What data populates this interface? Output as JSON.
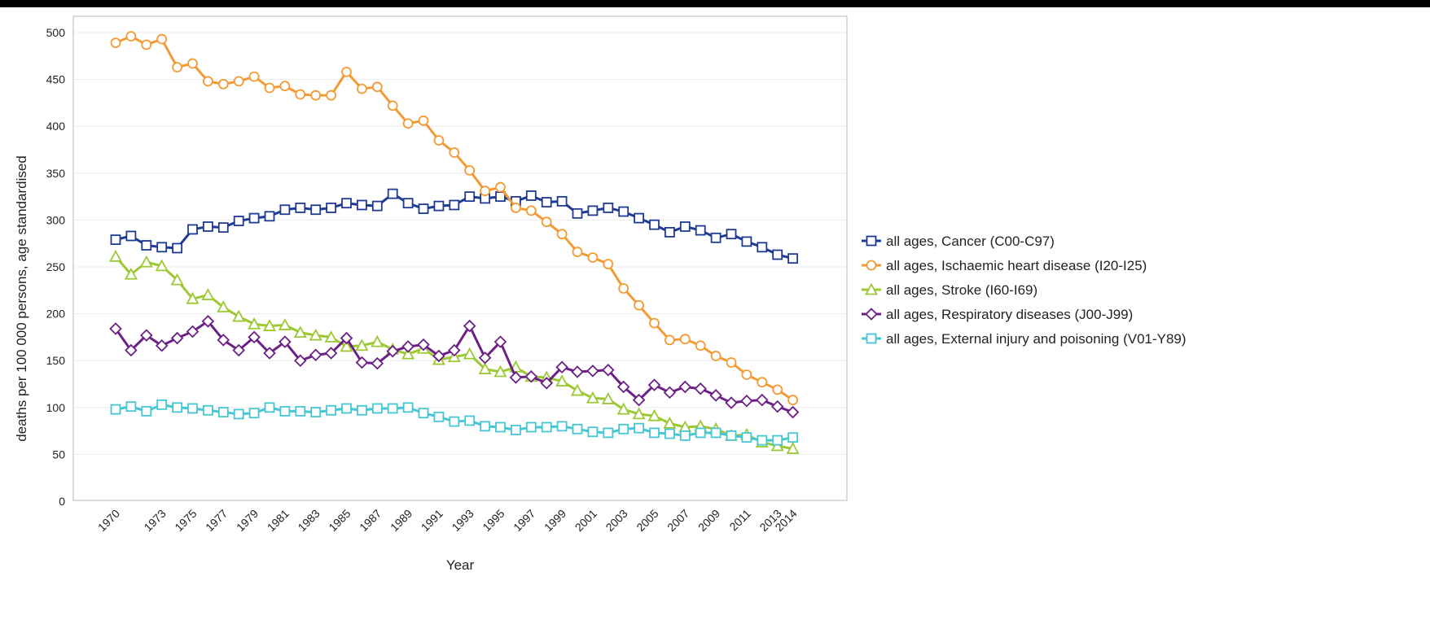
{
  "chart_data": {
    "type": "line",
    "title": "",
    "xlabel": "Year",
    "ylabel": "deaths per 100 000 persons, age standardised",
    "ylim": [
      0,
      520
    ],
    "yticks": [
      0,
      50,
      100,
      150,
      200,
      250,
      300,
      350,
      400,
      450,
      500
    ],
    "x": [
      1970,
      1971,
      1972,
      1973,
      1974,
      1975,
      1976,
      1977,
      1978,
      1979,
      1980,
      1981,
      1982,
      1983,
      1984,
      1985,
      1986,
      1987,
      1988,
      1989,
      1990,
      1991,
      1992,
      1993,
      1994,
      1995,
      1996,
      1997,
      1998,
      1999,
      2000,
      2001,
      2002,
      2003,
      2004,
      2005,
      2006,
      2007,
      2008,
      2009,
      2010,
      2011,
      2012,
      2013,
      2014
    ],
    "xtick_labels": [
      "1970",
      "1973",
      "1975",
      "1977",
      "1979",
      "1981",
      "1983",
      "1985",
      "1987",
      "1989",
      "1991",
      "1993",
      "1995",
      "1997",
      "1999",
      "2001",
      "2003",
      "2005",
      "2007",
      "2009",
      "2011",
      "2013",
      "2014"
    ],
    "grid": "horizontal",
    "legend_position": "right",
    "series": [
      {
        "name": "all ages, Cancer (C00-C97)",
        "color": "#1f3a93",
        "marker": "square",
        "values": [
          279,
          283,
          273,
          271,
          270,
          290,
          293,
          292,
          299,
          302,
          304,
          311,
          313,
          311,
          313,
          318,
          316,
          315,
          328,
          318,
          312,
          315,
          316,
          325,
          323,
          325,
          320,
          326,
          319,
          320,
          307,
          310,
          313,
          309,
          302,
          295,
          287,
          293,
          289,
          281,
          285,
          277,
          271,
          263,
          259
        ]
      },
      {
        "name": "all ages, Ischaemic heart disease (I20-I25)",
        "color": "#f39a34",
        "marker": "circle",
        "values": [
          489,
          496,
          487,
          493,
          463,
          467,
          448,
          445,
          448,
          453,
          441,
          443,
          434,
          433,
          433,
          458,
          440,
          442,
          422,
          403,
          406,
          385,
          372,
          353,
          331,
          335,
          313,
          310,
          298,
          285,
          266,
          260,
          253,
          227,
          209,
          190,
          172,
          173,
          166,
          155,
          148,
          135,
          127,
          119,
          108
        ]
      },
      {
        "name": "all ages, Stroke (I60-I69)",
        "color": "#9cc933",
        "marker": "triangle",
        "values": [
          261,
          242,
          255,
          251,
          236,
          216,
          220,
          207,
          197,
          189,
          187,
          188,
          180,
          177,
          175,
          165,
          166,
          170,
          162,
          157,
          163,
          151,
          154,
          157,
          141,
          138,
          143,
          133,
          132,
          128,
          118,
          110,
          109,
          98,
          93,
          91,
          83,
          79,
          80,
          77,
          70,
          71,
          63,
          59,
          56
        ]
      },
      {
        "name": "all ages, Respiratory diseases (J00-J99)",
        "color": "#6c1f85",
        "marker": "diamond",
        "values": [
          184,
          161,
          177,
          166,
          174,
          181,
          192,
          172,
          161,
          175,
          158,
          170,
          150,
          156,
          158,
          174,
          148,
          147,
          160,
          165,
          167,
          155,
          161,
          187,
          153,
          170,
          132,
          133,
          126,
          143,
          138,
          139,
          140,
          122,
          108,
          124,
          116,
          122,
          120,
          113,
          105,
          107,
          108,
          101,
          95
        ]
      },
      {
        "name": "all ages, External injury and poisoning (V01-Y89)",
        "color": "#45c7d3",
        "marker": "square",
        "values": [
          98,
          101,
          96,
          103,
          100,
          99,
          97,
          95,
          93,
          94,
          100,
          96,
          96,
          95,
          97,
          99,
          97,
          99,
          99,
          100,
          94,
          90,
          85,
          86,
          80,
          79,
          76,
          79,
          79,
          80,
          77,
          74,
          73,
          77,
          78,
          73,
          72,
          70,
          73,
          73,
          70,
          68,
          65,
          65,
          68
        ]
      }
    ]
  }
}
